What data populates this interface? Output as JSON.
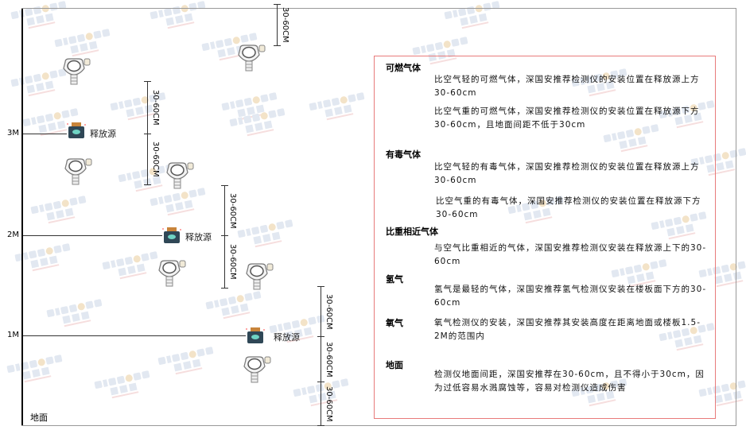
{
  "watermark": {
    "brand": "SINGOAN",
    "cn": "深国安"
  },
  "levels": {
    "m3": "3M",
    "m2": "2M",
    "m1": "1M",
    "ground": "地面"
  },
  "dimension_label": "30-60CM",
  "source_label": "释放源",
  "notes": {
    "flammable": {
      "title": "可燃气体",
      "light": "比空气轻的可燃气体，深国安推荐检测仪的安装位置在释放源上方30-60cm",
      "heavy": "比空气重的可燃气体，深国安推荐检测仪的安装位置在释放源下方30-60cm，且地面间距不低于30cm"
    },
    "toxic": {
      "title": "有毒气体",
      "light": "比空气轻的有毒气体，深国安推荐检测仪的安装位置在释放源上方30-60cm",
      "heavy": "比空气重的有毒气体，深国安推荐检测仪的安装位置在释放源下方30-60cm"
    },
    "similar": {
      "title": "比重相近气体",
      "text": "与空气比重相近的气体，深国安推荐检测仪安装在释放源上下的30-60cm"
    },
    "hydrogen": {
      "title": "氢气",
      "text": "氢气是最轻的气体，深国安推荐氢气检测仪安装在楼板面下方的30-60cm"
    },
    "oxygen": {
      "title": "氧气",
      "text": "氧气检测仪的安装，深国安推荐其安装高度在距离地面或楼板1.5-2M的范围内"
    },
    "ground": {
      "title": "地面",
      "text": "检测仪地面间距，深国安推荐在30-60cm，且不得小于30cm，因为过低容易水溅腐蚀等，容易对检测仪造成伤害"
    }
  },
  "colors": {
    "frame": "#e87b7b",
    "source_body": "#2f4756",
    "source_cap": "#c8843a"
  }
}
